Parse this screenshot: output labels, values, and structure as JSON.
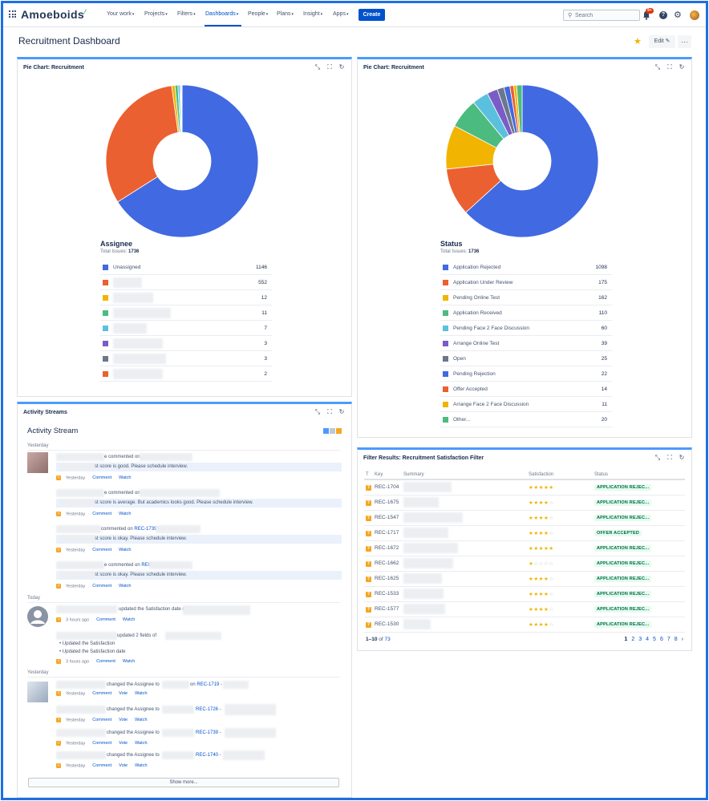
{
  "nav": {
    "brand": "Amoeboids",
    "items": [
      "Your work",
      "Projects",
      "Filters",
      "Dashboards",
      "People",
      "Plans",
      "Insight",
      "Apps"
    ],
    "create": "Create",
    "search_placeholder": "Search",
    "notifications": "9+"
  },
  "page": {
    "title": "Recruitment Dashboard",
    "edit": "Edit"
  },
  "gadgets": {
    "assignee": {
      "title": "Pie Chart: Recruitment",
      "legend_title": "Assignee",
      "total_label": "Total Issues:",
      "total": "1736"
    },
    "status": {
      "title": "Pie Chart: Recruitment",
      "legend_title": "Status",
      "total_label": "Total Issues:",
      "total": "1736"
    },
    "activity": {
      "title": "Activity Streams",
      "heading": "Activity Stream",
      "yesterday": "Yesterday",
      "today": "Today",
      "comment": "Comment",
      "watch": "Watch",
      "vote": "Vote",
      "show_more": "Show more...",
      "entries": [
        {
          "action": "e commented on",
          "quote": "st score is good. Please schedule interview.",
          "when": "Yesterday"
        },
        {
          "action": "e commented on",
          "quote": "st score is average. But academics looks good. Please schedule interview.",
          "when": "Yesterday"
        },
        {
          "action": "commented on",
          "issue": "REC-1739",
          "quote": "st score is okay. Please schedule interview.",
          "when": "Yesterday"
        },
        {
          "action": "e commented on",
          "issue": "REC-",
          "quote": "st score is okay. Please schedule interview.",
          "when": "Yesterday"
        }
      ],
      "today_entries": [
        {
          "action": "updated the Satisfaction date of",
          "when": "3 hours ago"
        },
        {
          "action": "updated 2 fields of",
          "bullets": [
            "Updated the Satisfaction",
            "Updated the Satisfaction date"
          ],
          "when": "3 hours ago"
        }
      ],
      "assign_entries": [
        {
          "action": "changed the Assignee to",
          "issue": "REC-1719",
          "when": "Yesterday"
        },
        {
          "action": "changed the Assignee to",
          "issue": "REC-1726",
          "when": "Yesterday"
        },
        {
          "action": "changed the Assignee to",
          "issue": "REC-1739",
          "when": "Yesterday"
        },
        {
          "action": "changed the Assignee to",
          "issue": "REC-1740",
          "when": "Yesterday"
        }
      ],
      "on_word": "on"
    },
    "filter": {
      "title": "Filter Results: Recruitment Satisfaction Filter",
      "columns": [
        "T",
        "Key",
        "Summary",
        "Satisfaction",
        "Status"
      ],
      "rows": [
        {
          "key": "REC-1704",
          "stars": 5,
          "status": "APPLICATION REJEC..."
        },
        {
          "key": "REC-1675",
          "stars": 4,
          "status": "APPLICATION REJEC..."
        },
        {
          "key": "REC-1547",
          "stars": 4,
          "status": "APPLICATION REJEC..."
        },
        {
          "key": "REC-1717",
          "stars": 4,
          "status": "OFFER ACCEPTED"
        },
        {
          "key": "REC-1672",
          "stars": 5,
          "status": "APPLICATION REJEC..."
        },
        {
          "key": "REC-1662",
          "stars": 1,
          "status": "APPLICATION REJEC..."
        },
        {
          "key": "REC-1625",
          "stars": 4,
          "status": "APPLICATION REJEC..."
        },
        {
          "key": "REC-1533",
          "stars": 4,
          "status": "APPLICATION REJEC..."
        },
        {
          "key": "REC-1577",
          "stars": 4,
          "status": "APPLICATION REJEC..."
        },
        {
          "key": "REC-1530",
          "stars": 4,
          "status": "APPLICATION REJEC..."
        }
      ],
      "range": "1–10",
      "of_word": "of",
      "total": "73",
      "pages": [
        "1",
        "2",
        "3",
        "4",
        "5",
        "6",
        "7",
        "8"
      ],
      "next": "›"
    }
  },
  "chart_data": [
    {
      "type": "pie",
      "title": "Assignee",
      "categories": [
        "Unassigned",
        "",
        "",
        "",
        "",
        "",
        "",
        ""
      ],
      "values": [
        1146,
        552,
        12,
        11,
        7,
        3,
        3,
        2
      ],
      "colors": [
        "#4169e1",
        "#eb6030",
        "#f1b400",
        "#4cbb7f",
        "#5bc0de",
        "#7a5cc7",
        "#6b778c",
        "#eb6030"
      ]
    },
    {
      "type": "pie",
      "title": "Status",
      "categories": [
        "Application Rejected",
        "Application Under Review",
        "Pending Online Test",
        "Application Received",
        "Pending Face 2 Face Discussion",
        "Arrange Online Test",
        "Open",
        "Pending Rejection",
        "Offer Accepted",
        "Arrange Face 2 Face Discussion",
        "Other..."
      ],
      "values": [
        1098,
        175,
        162,
        110,
        60,
        39,
        25,
        22,
        14,
        11,
        20
      ],
      "colors": [
        "#4169e1",
        "#eb6030",
        "#f1b400",
        "#4cbb7f",
        "#5bc0de",
        "#7a5cc7",
        "#6b778c",
        "#4169e1",
        "#eb6030",
        "#f1b400",
        "#4cbb7f"
      ]
    }
  ]
}
